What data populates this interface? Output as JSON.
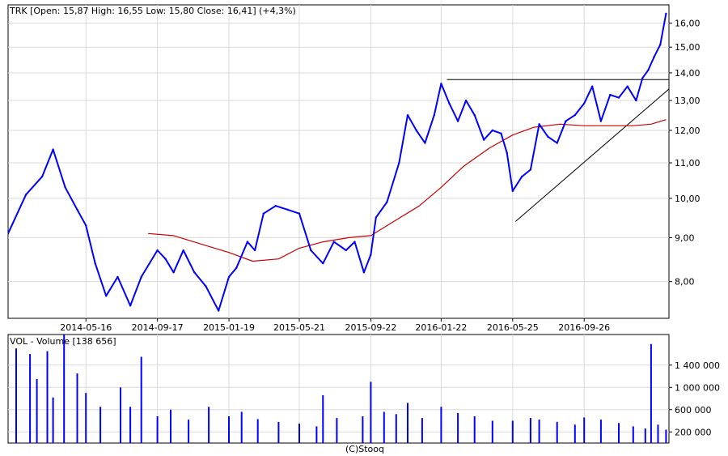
{
  "chart_data": [
    {
      "type": "line",
      "panel": "price",
      "title": "TRK [Open: 15,87  High: 16,55  Low: 15,80  Close: 16,41] (+4,3%)",
      "xlabel": "",
      "ylabel": "",
      "ylim": [
        7.25,
        16.8
      ],
      "y_scale": "log",
      "y_ticks": [
        "16,00",
        "15,00",
        "14,00",
        "13,00",
        "12,00",
        "11,00",
        "10,00",
        "9,00",
        "8,00"
      ],
      "y_tick_values": [
        16,
        15,
        14,
        13,
        12,
        11,
        10,
        9,
        8
      ],
      "x_ticks": [
        "2014-05-16",
        "2014-09-17",
        "2015-01-19",
        "2015-05-21",
        "2015-09-22",
        "2016-01-22",
        "2016-05-25",
        "2016-09-26"
      ],
      "x_range": [
        "2014-01-01",
        "2017-02-20"
      ],
      "grid": true,
      "legend": "none",
      "series": [
        {
          "color": "#0000ff",
          "x": [
            "2014-01-01",
            "2014-02-01",
            "2014-03-01",
            "2014-03-20",
            "2014-04-10",
            "2014-05-01",
            "2014-05-16",
            "2014-06-01",
            "2014-06-20",
            "2014-07-10",
            "2014-08-01",
            "2014-08-20",
            "2014-09-17",
            "2014-10-01",
            "2014-10-15",
            "2014-11-01",
            "2014-11-20",
            "2014-12-10",
            "2015-01-01",
            "2015-01-19",
            "2015-02-01",
            "2015-02-20",
            "2015-03-05",
            "2015-03-20",
            "2015-04-10",
            "2015-05-01",
            "2015-05-21",
            "2015-06-10",
            "2015-07-01",
            "2015-07-20",
            "2015-08-10",
            "2015-08-25",
            "2015-09-10",
            "2015-09-22",
            "2015-10-01",
            "2015-10-20",
            "2015-11-10",
            "2015-11-25",
            "2015-12-10",
            "2015-12-25",
            "2016-01-10",
            "2016-01-22",
            "2016-02-05",
            "2016-02-20",
            "2016-03-05",
            "2016-03-20",
            "2016-04-05",
            "2016-04-20",
            "2016-05-05",
            "2016-05-15",
            "2016-05-25",
            "2016-06-10",
            "2016-06-25",
            "2016-07-10",
            "2016-07-25",
            "2016-08-10",
            "2016-08-25",
            "2016-09-10",
            "2016-09-26",
            "2016-10-10",
            "2016-10-25",
            "2016-11-10",
            "2016-11-25",
            "2016-12-10",
            "2016-12-25",
            "2017-01-05",
            "2017-01-15",
            "2017-01-25",
            "2017-02-05",
            "2017-02-15"
          ],
          "values": [
            9.1,
            10.1,
            10.6,
            11.4,
            10.3,
            9.7,
            9.3,
            8.4,
            7.7,
            8.1,
            7.5,
            8.1,
            8.7,
            8.5,
            8.2,
            8.7,
            8.2,
            7.9,
            7.4,
            8.1,
            8.3,
            8.9,
            8.7,
            9.6,
            9.8,
            9.7,
            9.6,
            8.7,
            8.4,
            8.9,
            8.7,
            8.9,
            8.2,
            8.6,
            9.5,
            9.9,
            11.0,
            12.5,
            12.0,
            11.6,
            12.5,
            13.6,
            12.9,
            12.3,
            13.0,
            12.5,
            11.7,
            12.0,
            11.9,
            11.3,
            10.2,
            10.6,
            10.8,
            12.2,
            11.8,
            11.6,
            12.3,
            12.5,
            12.9,
            13.5,
            12.3,
            13.2,
            13.1,
            13.5,
            13.0,
            13.8,
            14.1,
            14.6,
            15.1,
            16.41
          ]
        },
        {
          "color": "#cc0000",
          "x": [
            "2014-09-01",
            "2014-10-15",
            "2014-12-01",
            "2015-01-19",
            "2015-03-01",
            "2015-04-15",
            "2015-05-21",
            "2015-07-01",
            "2015-08-15",
            "2015-09-22",
            "2015-11-01",
            "2015-12-15",
            "2016-01-22",
            "2016-03-01",
            "2016-04-15",
            "2016-05-25",
            "2016-07-01",
            "2016-08-15",
            "2016-09-26",
            "2016-11-10",
            "2016-12-20",
            "2017-01-20",
            "2017-02-15"
          ],
          "values": [
            9.1,
            9.05,
            8.85,
            8.65,
            8.45,
            8.5,
            8.75,
            8.9,
            9.0,
            9.05,
            9.4,
            9.8,
            10.3,
            10.9,
            11.45,
            11.85,
            12.1,
            12.2,
            12.15,
            12.15,
            12.15,
            12.2,
            12.35
          ]
        }
      ],
      "trendlines": [
        {
          "color": "#000000",
          "from": {
            "x": "2016-02-01",
            "y": 13.75
          },
          "to": {
            "x": "2017-02-28",
            "y": 13.75
          }
        },
        {
          "color": "#000000",
          "from": {
            "x": "2016-05-30",
            "y": 9.4
          },
          "to": {
            "x": "2017-02-28",
            "y": 13.55
          }
        }
      ]
    },
    {
      "type": "bar",
      "panel": "volume",
      "title": "VOL - Volume [138 656]",
      "ylim": [
        0,
        1950000
      ],
      "y_ticks": [
        "1 400 000",
        "1 000 000",
        "600 000",
        "200 000"
      ],
      "y_tick_values": [
        1400000,
        1000000,
        600000,
        200000
      ],
      "grid": true,
      "legend": "none",
      "series": [
        {
          "color": "#0000ff",
          "x": [
            "2014-01-15",
            "2014-02-08",
            "2014-02-20",
            "2014-03-10",
            "2014-03-20",
            "2014-04-08",
            "2014-05-01",
            "2014-05-16",
            "2014-06-10",
            "2014-07-15",
            "2014-08-01",
            "2014-08-20",
            "2014-09-17",
            "2014-10-10",
            "2014-11-10",
            "2014-12-15",
            "2015-01-19",
            "2015-02-10",
            "2015-03-10",
            "2015-04-15",
            "2015-05-21",
            "2015-06-20",
            "2015-07-01",
            "2015-07-25",
            "2015-09-08",
            "2015-09-22",
            "2015-10-15",
            "2015-11-05",
            "2015-11-25",
            "2015-12-20",
            "2016-01-22",
            "2016-02-20",
            "2016-03-20",
            "2016-04-20",
            "2016-05-25",
            "2016-06-25",
            "2016-07-10",
            "2016-08-10",
            "2016-09-10",
            "2016-09-26",
            "2016-10-25",
            "2016-11-25",
            "2016-12-20",
            "2017-01-10",
            "2017-01-20",
            "2017-02-01",
            "2017-02-15"
          ],
          "values": [
            1700000,
            1600000,
            1150000,
            1650000,
            820000,
            1950000,
            1250000,
            900000,
            650000,
            1000000,
            650000,
            1550000,
            480000,
            600000,
            420000,
            650000,
            480000,
            560000,
            430000,
            380000,
            350000,
            300000,
            860000,
            450000,
            480000,
            1100000,
            560000,
            520000,
            720000,
            450000,
            650000,
            540000,
            480000,
            400000,
            400000,
            450000,
            420000,
            380000,
            330000,
            460000,
            420000,
            360000,
            300000,
            260000,
            1780000,
            330000,
            240000
          ]
        }
      ]
    }
  ],
  "footer": {
    "credit": "(C)Stooq"
  }
}
